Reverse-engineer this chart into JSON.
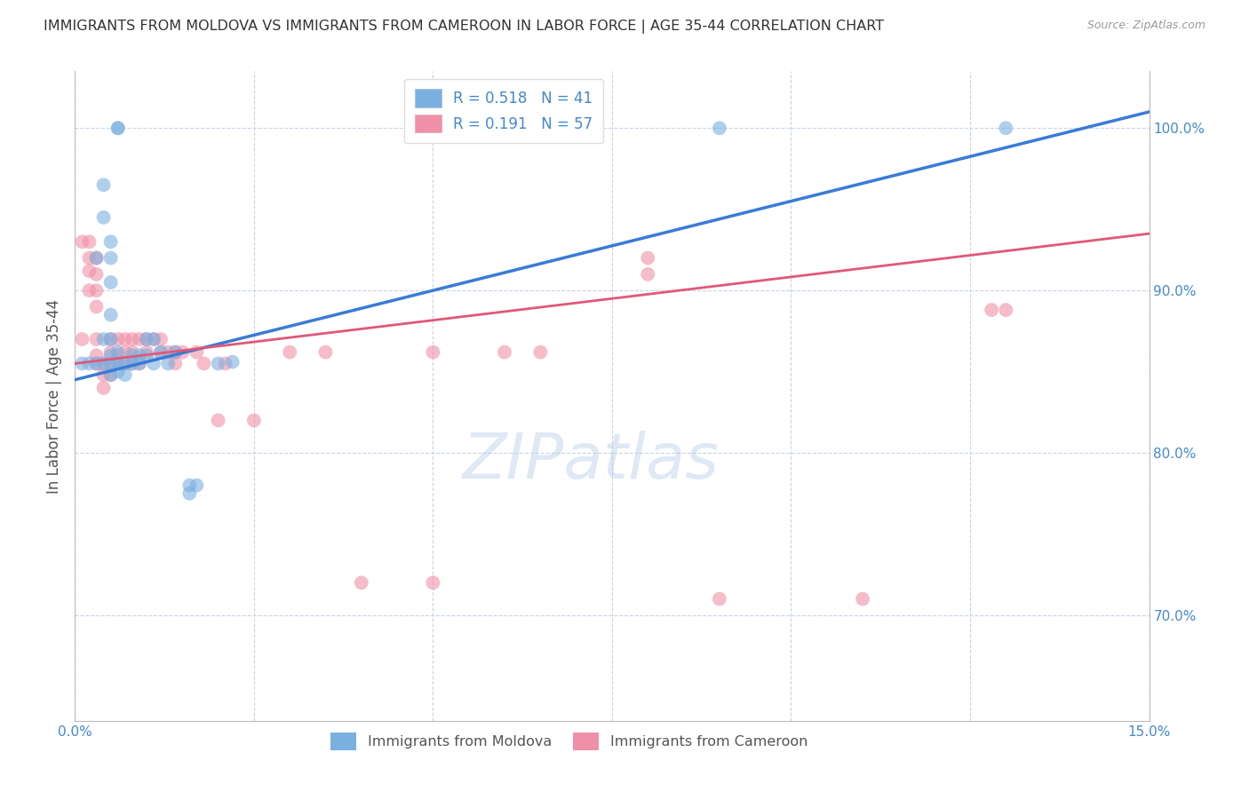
{
  "title": "IMMIGRANTS FROM MOLDOVA VS IMMIGRANTS FROM CAMEROON IN LABOR FORCE | AGE 35-44 CORRELATION CHART",
  "source": "Source: ZipAtlas.com",
  "ylabel": "In Labor Force | Age 35-44",
  "xlim": [
    0.0,
    0.15
  ],
  "ylim": [
    0.635,
    1.035
  ],
  "yticks": [
    0.7,
    0.8,
    0.9,
    1.0
  ],
  "ytick_labels": [
    "70.0%",
    "80.0%",
    "90.0%",
    "100.0%"
  ],
  "xticks": [
    0.0,
    0.025,
    0.05,
    0.075,
    0.1,
    0.125,
    0.15
  ],
  "xtick_labels_show": [
    "0.0%",
    "15.0%"
  ],
  "moldova_color": "#7ab0e0",
  "cameroon_color": "#f090a8",
  "moldova_line_color": "#3a7bd5",
  "cameroon_line_color": "#e05878",
  "moldova_line": {
    "x0": 0.0,
    "y0": 0.845,
    "x1": 0.15,
    "y1": 1.01
  },
  "cameroon_line": {
    "x0": 0.0,
    "y0": 0.855,
    "x1": 0.15,
    "y1": 0.935
  },
  "moldova_points": [
    [
      0.001,
      0.855
    ],
    [
      0.002,
      0.855
    ],
    [
      0.003,
      0.92
    ],
    [
      0.003,
      0.855
    ],
    [
      0.004,
      0.965
    ],
    [
      0.004,
      0.945
    ],
    [
      0.004,
      0.87
    ],
    [
      0.004,
      0.855
    ],
    [
      0.005,
      0.93
    ],
    [
      0.005,
      0.92
    ],
    [
      0.005,
      0.905
    ],
    [
      0.005,
      0.885
    ],
    [
      0.005,
      0.87
    ],
    [
      0.005,
      0.86
    ],
    [
      0.005,
      0.855
    ],
    [
      0.005,
      0.848
    ],
    [
      0.006,
      0.862
    ],
    [
      0.006,
      0.855
    ],
    [
      0.006,
      0.85
    ],
    [
      0.006,
      1.0
    ],
    [
      0.006,
      1.0
    ],
    [
      0.007,
      0.855
    ],
    [
      0.007,
      0.848
    ],
    [
      0.008,
      0.86
    ],
    [
      0.008,
      0.855
    ],
    [
      0.009,
      0.86
    ],
    [
      0.009,
      0.855
    ],
    [
      0.01,
      0.87
    ],
    [
      0.01,
      0.86
    ],
    [
      0.011,
      0.87
    ],
    [
      0.011,
      0.855
    ],
    [
      0.012,
      0.862
    ],
    [
      0.013,
      0.855
    ],
    [
      0.014,
      0.862
    ],
    [
      0.016,
      0.78
    ],
    [
      0.016,
      0.775
    ],
    [
      0.017,
      0.78
    ],
    [
      0.02,
      0.855
    ],
    [
      0.022,
      0.856
    ],
    [
      0.09,
      1.0
    ],
    [
      0.13,
      1.0
    ]
  ],
  "cameroon_points": [
    [
      0.001,
      0.93
    ],
    [
      0.001,
      0.87
    ],
    [
      0.002,
      0.93
    ],
    [
      0.002,
      0.92
    ],
    [
      0.002,
      0.912
    ],
    [
      0.002,
      0.9
    ],
    [
      0.003,
      0.92
    ],
    [
      0.003,
      0.91
    ],
    [
      0.003,
      0.9
    ],
    [
      0.003,
      0.89
    ],
    [
      0.003,
      0.87
    ],
    [
      0.003,
      0.86
    ],
    [
      0.003,
      0.855
    ],
    [
      0.004,
      0.855
    ],
    [
      0.004,
      0.848
    ],
    [
      0.004,
      0.84
    ],
    [
      0.005,
      0.87
    ],
    [
      0.005,
      0.862
    ],
    [
      0.005,
      0.855
    ],
    [
      0.005,
      0.848
    ],
    [
      0.006,
      0.87
    ],
    [
      0.006,
      0.86
    ],
    [
      0.006,
      0.855
    ],
    [
      0.007,
      0.87
    ],
    [
      0.007,
      0.862
    ],
    [
      0.007,
      0.855
    ],
    [
      0.008,
      0.87
    ],
    [
      0.008,
      0.862
    ],
    [
      0.008,
      0.855
    ],
    [
      0.009,
      0.87
    ],
    [
      0.009,
      0.855
    ],
    [
      0.01,
      0.87
    ],
    [
      0.01,
      0.862
    ],
    [
      0.011,
      0.87
    ],
    [
      0.012,
      0.87
    ],
    [
      0.012,
      0.862
    ],
    [
      0.013,
      0.862
    ],
    [
      0.014,
      0.862
    ],
    [
      0.014,
      0.855
    ],
    [
      0.015,
      0.862
    ],
    [
      0.017,
      0.862
    ],
    [
      0.018,
      0.855
    ],
    [
      0.02,
      0.82
    ],
    [
      0.021,
      0.855
    ],
    [
      0.025,
      0.82
    ],
    [
      0.03,
      0.862
    ],
    [
      0.035,
      0.862
    ],
    [
      0.05,
      0.862
    ],
    [
      0.06,
      0.862
    ],
    [
      0.065,
      0.862
    ],
    [
      0.08,
      0.92
    ],
    [
      0.08,
      0.91
    ],
    [
      0.09,
      0.71
    ],
    [
      0.11,
      0.71
    ],
    [
      0.128,
      0.888
    ],
    [
      0.13,
      0.888
    ],
    [
      0.04,
      0.72
    ],
    [
      0.05,
      0.72
    ]
  ],
  "watermark_text": "ZIPatlas",
  "bg_color": "#ffffff",
  "grid_color": "#c8d4e8",
  "title_color": "#333333",
  "axis_label_color": "#555555",
  "tick_color": "#4488cc"
}
